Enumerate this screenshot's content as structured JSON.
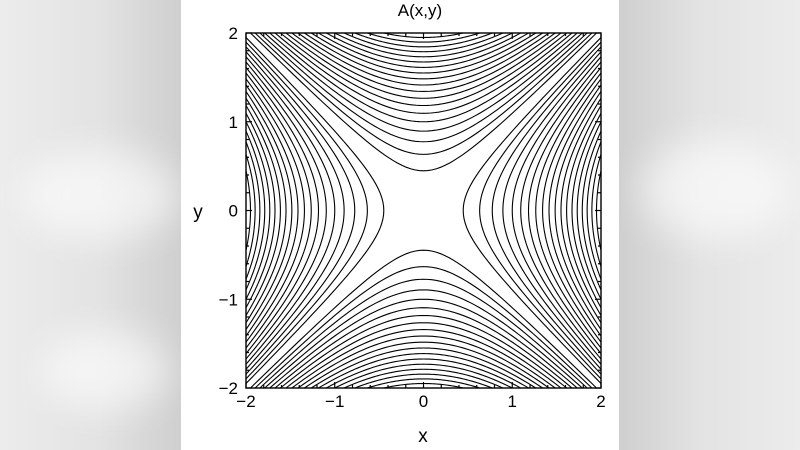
{
  "chart_data": {
    "type": "contour",
    "title": "A(x,y)",
    "xlabel": "x",
    "ylabel": "y",
    "xlim": [
      -2,
      2
    ],
    "ylim": [
      -2,
      2
    ],
    "xticks": [
      -2,
      -1,
      0,
      1,
      2
    ],
    "yticks": [
      -2,
      -1,
      0,
      1,
      2
    ],
    "xtick_labels": [
      "−2",
      "−1",
      "0",
      "1",
      "2"
    ],
    "ytick_labels": [
      "−2",
      "−1",
      "0",
      "1",
      "2"
    ],
    "function": "y^2 - x^2 (saddle)",
    "levels": [
      -3.8,
      -3.6,
      -3.4,
      -3.2,
      -3.0,
      -2.8,
      -2.6,
      -2.4,
      -2.2,
      -2.0,
      -1.8,
      -1.6,
      -1.4,
      -1.2,
      -1.0,
      -0.8,
      -0.6,
      -0.4,
      -0.2,
      0.2,
      0.4,
      0.6,
      0.8,
      1.0,
      1.2,
      1.4,
      1.6,
      1.8,
      2.0,
      2.2,
      2.4,
      2.6,
      2.8,
      3.0,
      3.2,
      3.4,
      3.6,
      3.8
    ],
    "line_color": "#000000",
    "frame": true,
    "grid": false
  }
}
